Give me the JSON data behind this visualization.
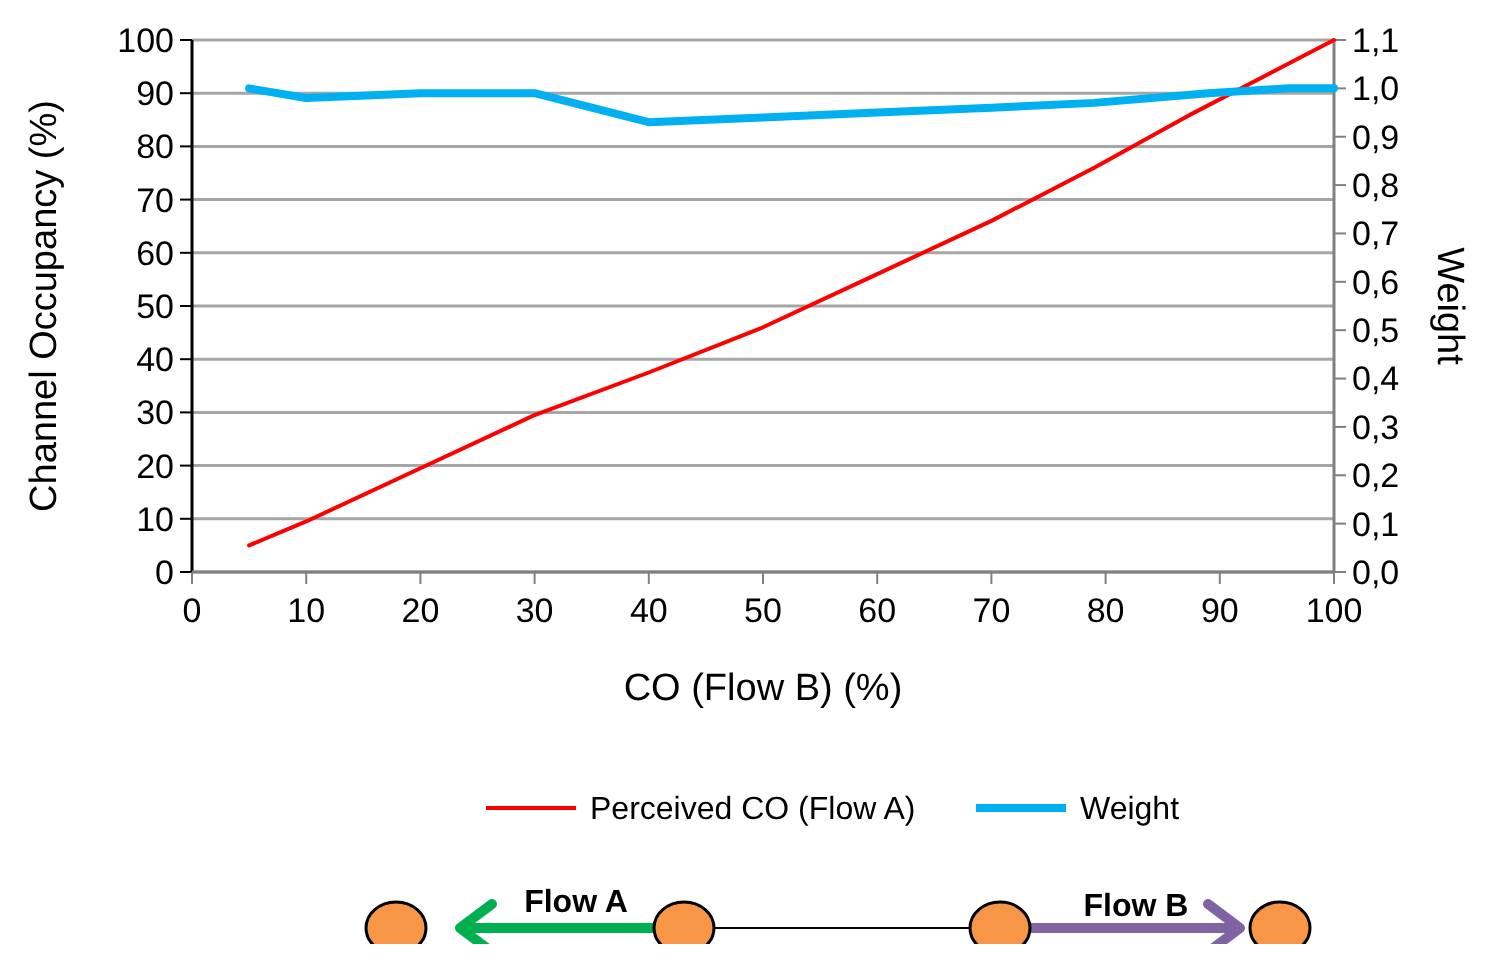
{
  "chart_data": {
    "type": "line",
    "xlabel": "CO (Flow B) (%)",
    "ylabel": "Channel Occupancy (%)",
    "y2label": "Weight",
    "xlim": [
      0,
      100
    ],
    "xticks": [
      0,
      10,
      20,
      30,
      40,
      50,
      60,
      70,
      80,
      90,
      100
    ],
    "ylim": [
      0,
      100
    ],
    "yticks": [
      0,
      10,
      20,
      30,
      40,
      50,
      60,
      70,
      80,
      90,
      100
    ],
    "y2lim": [
      0,
      1.1
    ],
    "y2ticks": [
      {
        "value": 0,
        "label": "0,0"
      },
      {
        "value": 0.1,
        "label": "0,1"
      },
      {
        "value": 0.2,
        "label": "0,2"
      },
      {
        "value": 0.3,
        "label": "0,3"
      },
      {
        "value": 0.4,
        "label": "0,4"
      },
      {
        "value": 0.5,
        "label": "0,5"
      },
      {
        "value": 0.6,
        "label": "0,6"
      },
      {
        "value": 0.7,
        "label": "0,7"
      },
      {
        "value": 0.8,
        "label": "0,8"
      },
      {
        "value": 0.9,
        "label": "0,9"
      },
      {
        "value": 1.0,
        "label": "1,0"
      },
      {
        "value": 1.1,
        "label": "1,1"
      }
    ],
    "grid": "y",
    "legend": "bottom",
    "marker": "none",
    "series": [
      {
        "name": "Perceived CO (Flow A)",
        "color": "#ff0000",
        "x": [
          5,
          10,
          20,
          30,
          40,
          50,
          60,
          70,
          79,
          87,
          100
        ],
        "values": [
          5,
          9.5,
          19.5,
          29.5,
          37.5,
          46,
          56,
          66,
          76,
          85.5,
          100
        ]
      },
      {
        "name": "Weight",
        "color": "#00b0f0",
        "axis": "y2",
        "x": [
          5,
          10,
          20,
          30,
          40,
          50,
          60,
          70,
          79,
          89,
          96,
          100
        ],
        "values": [
          1.0,
          0.98,
          0.99,
          0.99,
          0.93,
          0.94,
          0.95,
          0.96,
          0.97,
          0.99,
          1.0,
          1.0
        ]
      }
    ],
    "annotations": [
      "Flow A",
      "Flow B"
    ]
  }
}
